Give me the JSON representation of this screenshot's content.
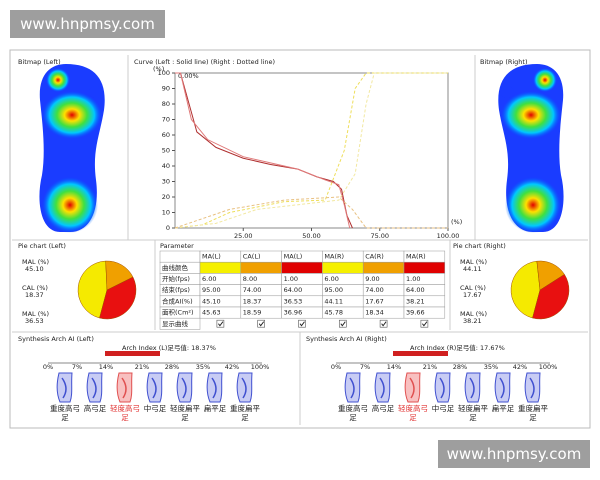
{
  "watermarks": [
    "www.hnpmsy.com",
    "www.hnpmsy.com"
  ],
  "bitmap_left": {
    "title": "Bitmap (Left)"
  },
  "bitmap_right": {
    "title": "Bitmap (Right)"
  },
  "curve": {
    "title": "Curve (Left : Solid line) (Right : Dotted line)",
    "y_unit": "(%)",
    "x_unit": "(%)",
    "start_label": "0.00%",
    "xlim": [
      0,
      100
    ],
    "ylim": [
      0,
      100
    ],
    "yticks": [
      0,
      10,
      20,
      30,
      40,
      50,
      60,
      70,
      80,
      90,
      100
    ],
    "xticks": [
      {
        "value": 25,
        "label": "25.00"
      },
      {
        "value": 50,
        "label": "50.00"
      },
      {
        "value": 75,
        "label": "75.00"
      },
      {
        "value": 100,
        "label": "100.00"
      }
    ],
    "series": [
      {
        "color": "#b03030",
        "dashed": false,
        "x": [
          0,
          2,
          8,
          15,
          25,
          35,
          45,
          52,
          58,
          61,
          63,
          65
        ],
        "y": [
          100,
          100,
          62,
          52,
          45,
          41,
          38,
          33,
          30,
          25,
          8,
          0
        ]
      },
      {
        "color": "#e07a7a",
        "dashed": false,
        "x": [
          0,
          2,
          6,
          12,
          25,
          35,
          45,
          55,
          60,
          62,
          64
        ],
        "y": [
          100,
          100,
          70,
          57,
          46,
          42,
          38,
          31,
          28,
          15,
          0
        ]
      },
      {
        "color": "#eede5a",
        "dashed": true,
        "x": [
          0,
          10,
          20,
          40,
          55,
          62,
          66,
          70,
          100
        ],
        "y": [
          0,
          2,
          10,
          17,
          18,
          50,
          90,
          100,
          100
        ]
      },
      {
        "color": "#f2e8a0",
        "dashed": true,
        "x": [
          0,
          15,
          30,
          50,
          60,
          66,
          70,
          73,
          100
        ],
        "y": [
          0,
          3,
          12,
          16,
          18,
          35,
          80,
          100,
          100
        ]
      },
      {
        "color": "#e8c080",
        "dashed": true,
        "x": [
          0,
          20,
          40,
          60,
          65,
          70,
          100
        ],
        "y": [
          0,
          12,
          18,
          20,
          12,
          0,
          0
        ]
      }
    ]
  },
  "pie_left": {
    "title": "Pie chart (Left)",
    "slices": [
      {
        "label": "MAL (%)",
        "value": "45.10",
        "color": "#f5ea00"
      },
      {
        "label": "CAL (%)",
        "value": "18.37",
        "color": "#f0a000"
      },
      {
        "label": "MAL (%)",
        "value": "36.53",
        "color": "#e81010"
      }
    ]
  },
  "pie_right": {
    "title": "Pie chart (Right)",
    "slices": [
      {
        "label": "MAL (%)",
        "value": "44.11",
        "color": "#f5ea00"
      },
      {
        "label": "CAL (%)",
        "value": "17.67",
        "color": "#f0a000"
      },
      {
        "label": "MAL (%)",
        "value": "38.21",
        "color": "#e81010"
      }
    ]
  },
  "parameter": {
    "title": "Parameter",
    "header": [
      "MA(L)",
      "CA(L)",
      "MA(L)",
      "MA(R)",
      "CA(R)",
      "MA(R)"
    ],
    "color_row": {
      "label": "曲线颜色",
      "colors": [
        "#f5f000",
        "#f0a000",
        "#e00000",
        "#f5f000",
        "#f0a000",
        "#e00000"
      ]
    },
    "rows": [
      {
        "label": "开始(fps)",
        "cells": [
          "6.00",
          "8.00",
          "1.00",
          "6.00",
          "9.00",
          "1.00"
        ]
      },
      {
        "label": "结束(fps)",
        "cells": [
          "95.00",
          "74.00",
          "64.00",
          "95.00",
          "74.00",
          "64.00"
        ]
      },
      {
        "label": "合成AI(%)",
        "cells": [
          "45.10",
          "18.37",
          "36.53",
          "44.11",
          "17.67",
          "38.21"
        ]
      },
      {
        "label": "面积(Cm²)",
        "cells": [
          "45.63",
          "18.59",
          "36.96",
          "45.78",
          "18.34",
          "39.66"
        ]
      }
    ],
    "check_row": {
      "label": "显示曲线",
      "checked": [
        true,
        true,
        true,
        true,
        true,
        true
      ]
    }
  },
  "arch_left": {
    "title": "Synthesis Arch AI (Left)",
    "index": "Arch Index (L)足弓值: 18.37%",
    "scale": [
      "0%",
      "7%",
      "14%",
      "21%",
      "28%",
      "35%",
      "42%",
      "100%"
    ],
    "types": [
      "重度高弓足",
      "高弓足",
      "轻度高弓足",
      "中弓足",
      "轻度扁平足",
      "扁平足",
      "重度扁平足"
    ],
    "highlight": 2
  },
  "arch_right": {
    "title": "Synthesis Arch AI (Right)",
    "index": "Arch Index (R)足弓值: 17.67%",
    "scale": [
      "0%",
      "7%",
      "14%",
      "21%",
      "28%",
      "35%",
      "42%",
      "100%"
    ],
    "types": [
      "重度高弓足",
      "高弓足",
      "轻度高弓足",
      "中弓足",
      "轻度扁平足",
      "扁平足",
      "重度扁平足"
    ],
    "highlight": 2
  }
}
